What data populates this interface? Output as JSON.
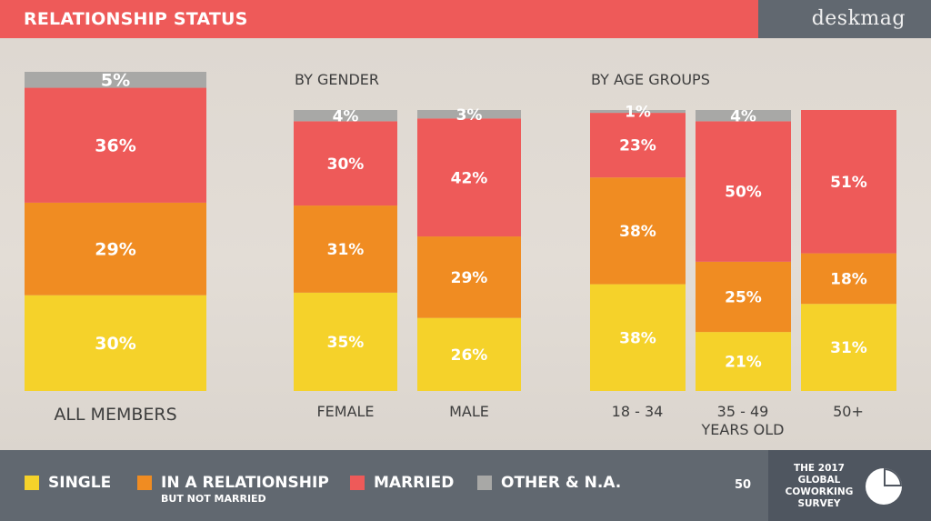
{
  "header": {
    "title": "RELATIONSHIP STATUS",
    "brand": "deskmag"
  },
  "footer": {
    "page": "50",
    "survey_lines": [
      "THE 2017",
      "GLOBAL",
      "COWORKING",
      "SURVEY"
    ]
  },
  "colors": {
    "single": "#f5d22a",
    "relationship": "#f08c22",
    "married": "#ee5a59",
    "other": "#a8a8a6"
  },
  "legend": [
    {
      "key": "single",
      "label": "SINGLE",
      "sublabel": ""
    },
    {
      "key": "relationship",
      "label": "IN A RELATIONSHIP",
      "sublabel": "BUT NOT MARRIED"
    },
    {
      "key": "married",
      "label": "MARRIED",
      "sublabel": ""
    },
    {
      "key": "other",
      "label": "OTHER & N.A.",
      "sublabel": ""
    }
  ],
  "chart_data": {
    "type": "bar",
    "stacked": true,
    "unit": "%",
    "groups": [
      {
        "title": "",
        "label": "ALL MEMBERS",
        "bars": [
          "ALL MEMBERS"
        ]
      },
      {
        "title": "BY GENDER",
        "label": "",
        "bars": [
          "FEMALE",
          "MALE"
        ]
      },
      {
        "title": "BY AGE GROUPS",
        "label": "YEARS OLD",
        "bars": [
          "18 - 34",
          "35 - 49",
          "50+"
        ]
      }
    ],
    "categories": [
      "ALL MEMBERS",
      "FEMALE",
      "MALE",
      "18 - 34",
      "35 - 49",
      "50+"
    ],
    "series": [
      {
        "name": "SINGLE",
        "values": [
          30,
          35,
          26,
          38,
          21,
          31
        ]
      },
      {
        "name": "IN A RELATIONSHIP",
        "values": [
          29,
          31,
          29,
          38,
          25,
          18
        ]
      },
      {
        "name": "MARRIED",
        "values": [
          36,
          30,
          42,
          23,
          50,
          51
        ]
      },
      {
        "name": "OTHER & N.A.",
        "values": [
          5,
          4,
          3,
          1,
          4,
          null
        ]
      }
    ]
  }
}
